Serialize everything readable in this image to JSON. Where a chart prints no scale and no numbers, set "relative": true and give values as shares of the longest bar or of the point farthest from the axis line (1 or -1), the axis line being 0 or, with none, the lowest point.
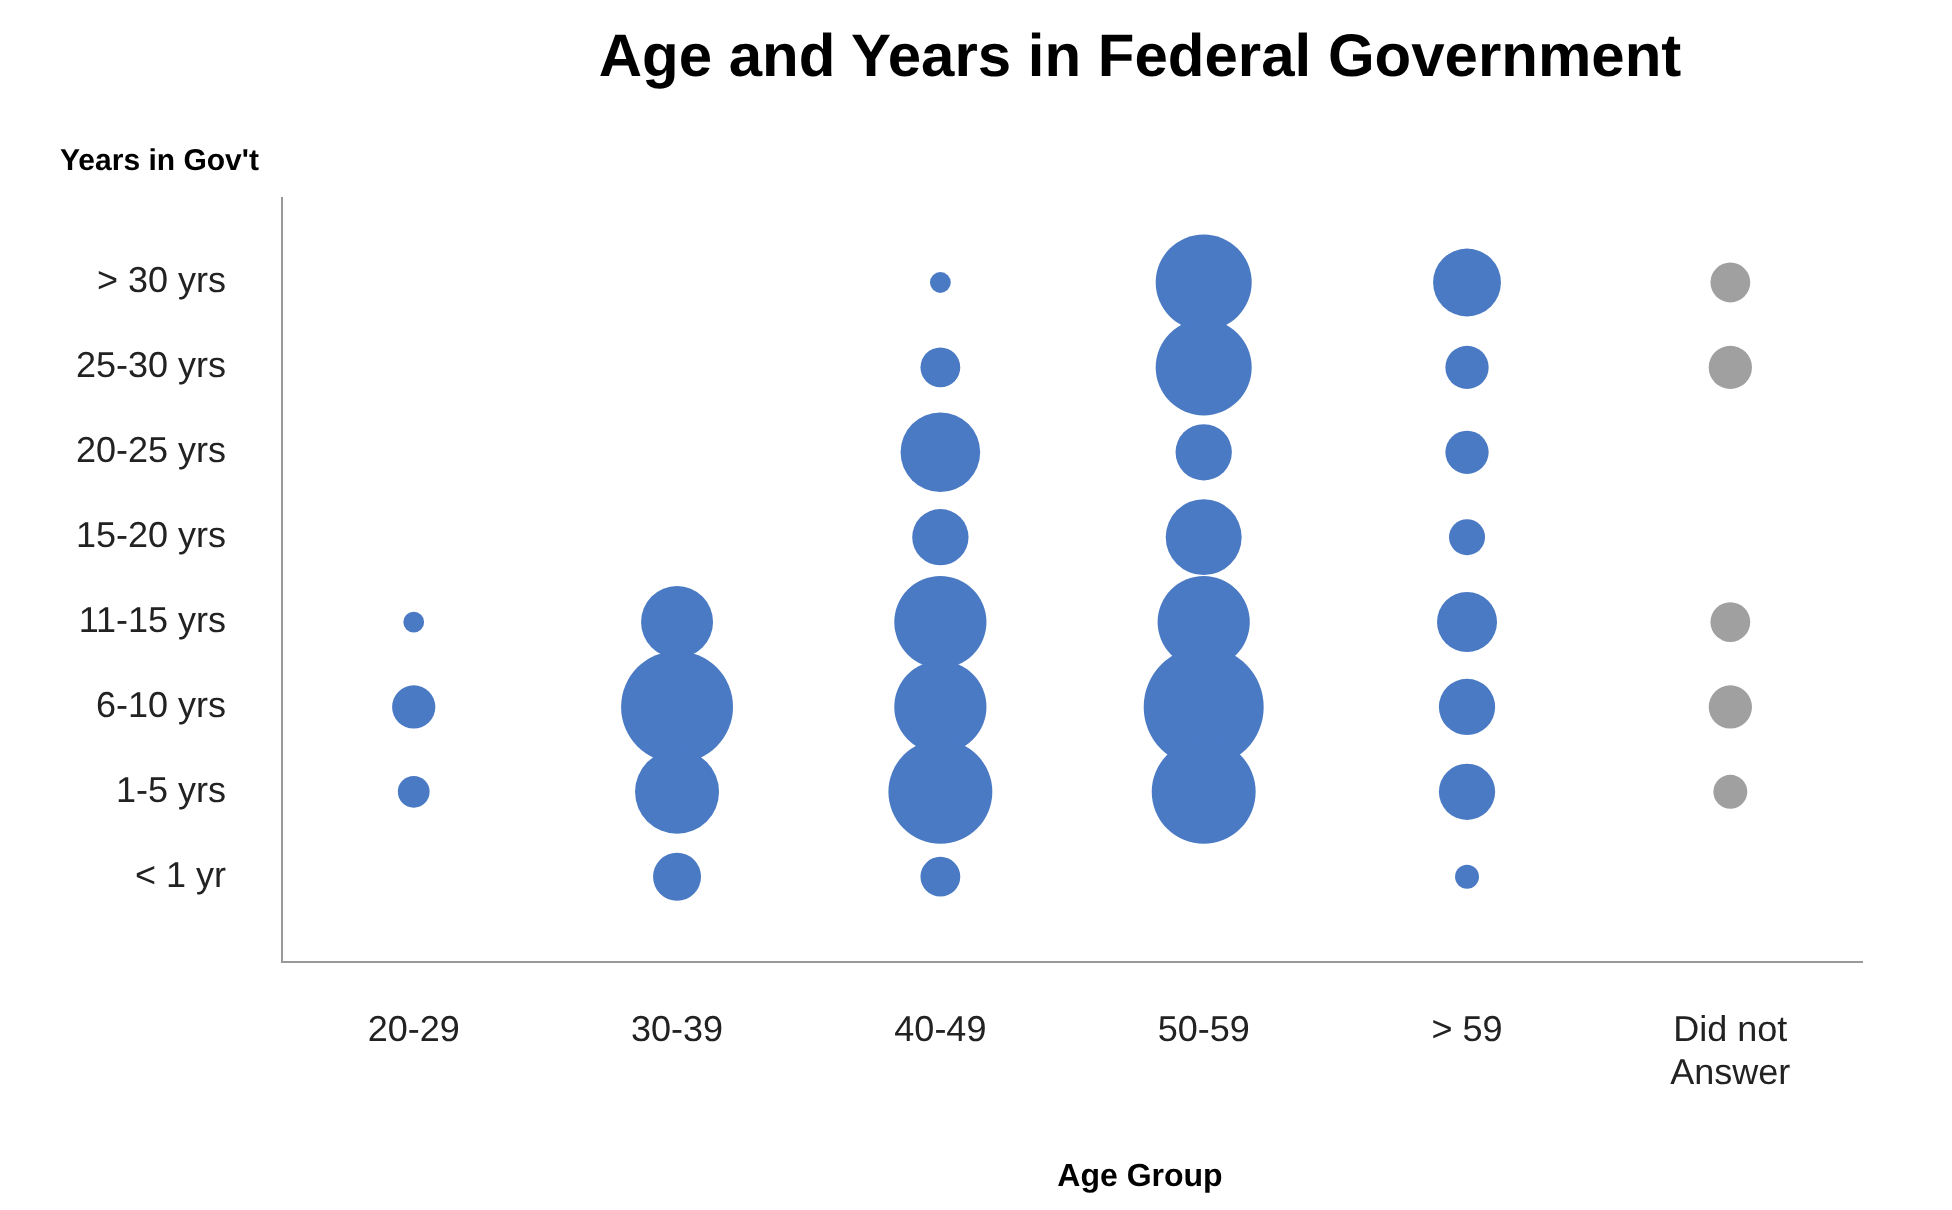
{
  "chart_data": {
    "type": "bubble",
    "title": "Age and Years in Federal Government",
    "xlabel": "Age Group",
    "ylabel": "Years in Gov't",
    "categories": [
      "20-29",
      "30-39",
      "40-49",
      "50-59",
      "> 59",
      "Did not Answer"
    ],
    "y_categories": [
      "> 30 yrs",
      "25-30 yrs",
      "20-25 yrs",
      "15-20 yrs",
      "11-15 yrs",
      "6-10 yrs",
      "1-5 yrs",
      "< 1 yr"
    ],
    "relative": true,
    "legend": false,
    "grid": false,
    "series": [
      {
        "color": "#4a7ac4",
        "x": [
          "20-29",
          "20-29",
          "20-29",
          "30-39",
          "30-39",
          "30-39",
          "30-39",
          "40-49",
          "40-49",
          "40-49",
          "40-49",
          "40-49",
          "40-49",
          "40-49",
          "40-49",
          "50-59",
          "50-59",
          "50-59",
          "50-59",
          "50-59",
          "50-59",
          "50-59",
          "> 59",
          "> 59",
          "> 59",
          "> 59",
          "> 59",
          "> 59",
          "> 59",
          "> 59"
        ],
        "values": [
          0.5,
          0.375,
          0.25,
          0.5,
          0.375,
          0.25,
          0.125,
          1,
          0.875,
          0.75,
          0.625,
          0.5,
          0.375,
          0.25,
          0.125,
          1,
          0.875,
          0.75,
          0.625,
          0.5,
          0.375,
          0.25,
          1,
          0.875,
          0.75,
          0.625,
          0.5,
          0.375,
          0.25,
          0.125
        ],
        "sizes": [
          0.03,
          0.13,
          0.07,
          0.36,
          0.87,
          0.49,
          0.16,
          0.03,
          0.11,
          0.44,
          0.22,
          0.59,
          0.59,
          0.75,
          0.11,
          0.64,
          0.64,
          0.22,
          0.4,
          0.59,
          1,
          0.75,
          0.32,
          0.13,
          0.13,
          0.09,
          0.25,
          0.22,
          0.22,
          0.04
        ]
      },
      {
        "color": "#a0a0a0",
        "x": [
          "Did not Answer",
          "Did not Answer",
          "Did not Answer",
          "Did not Answer",
          "Did not Answer"
        ],
        "values": [
          1,
          0.875,
          0.5,
          0.375,
          0.25
        ],
        "sizes": [
          0.11,
          0.13,
          0.11,
          0.13,
          0.08
        ]
      }
    ]
  }
}
